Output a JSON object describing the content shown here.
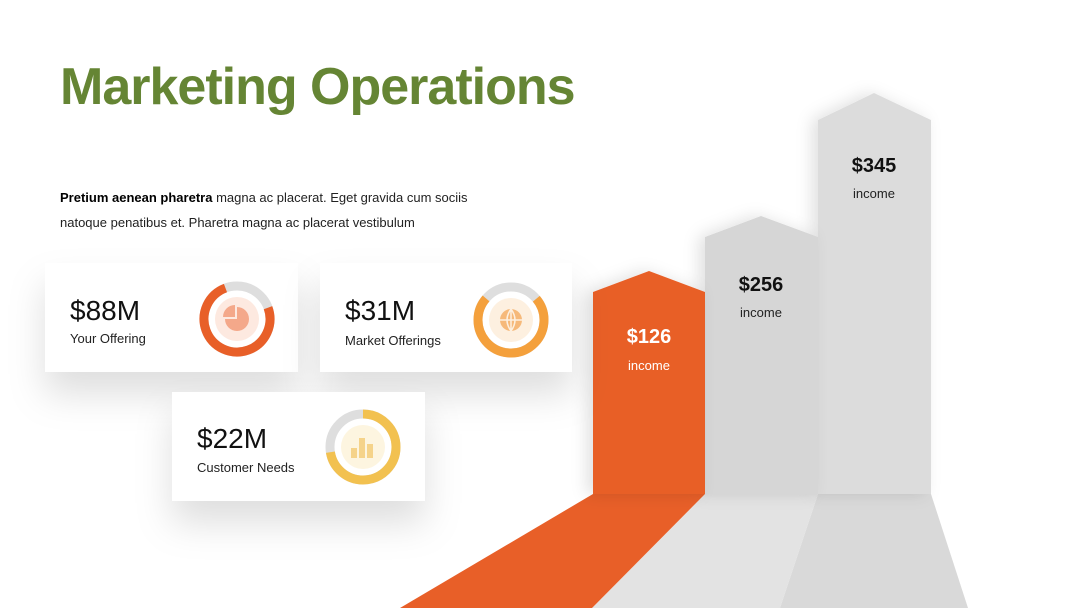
{
  "header": {
    "title": "Marketing Operations"
  },
  "intro": {
    "bold": "Pretium aenean pharetra",
    "line1": " magna ac placerat. Eget gravida cum sociis",
    "line2": "natoque penatibus et. Pharetra magna ac placerat vestibulum"
  },
  "cards": [
    {
      "value": "$88M",
      "label": "Your Offering"
    },
    {
      "value": "$31M",
      "label": "Market Offerings"
    },
    {
      "value": "$22M",
      "label": "Customer Needs"
    }
  ],
  "steps": [
    {
      "value": "$126",
      "label": "income"
    },
    {
      "value": "$256",
      "label": "income"
    },
    {
      "value": "$345",
      "label": "income"
    }
  ]
}
